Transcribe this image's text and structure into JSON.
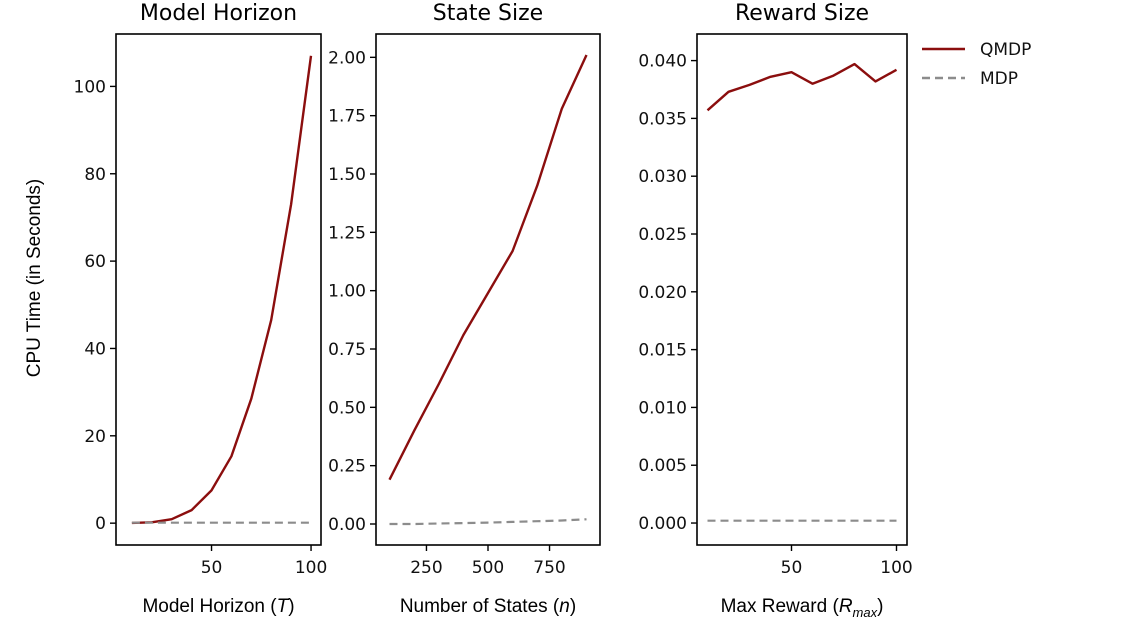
{
  "colors": {
    "qmdp": "#8b0e0e",
    "mdp": "#8c8c8c"
  },
  "legend": {
    "qmdp_label": "QMDP",
    "mdp_label": "MDP"
  },
  "ylabel": "CPU Time (in Seconds)",
  "chart_data": [
    {
      "type": "line",
      "title": "Model Horizon",
      "xlabel": "Model Horizon (T)",
      "xlabel_parts": {
        "pre": "Model Horizon (",
        "var": "T",
        "sub": "",
        "post": ")"
      },
      "xlim": [
        2,
        105
      ],
      "ylim": [
        -5,
        112
      ],
      "xticks": [
        50,
        100
      ],
      "yticks": [
        0,
        20,
        40,
        60,
        80,
        100
      ],
      "ytick_labels": [
        "0",
        "20",
        "40",
        "60",
        "80",
        "100"
      ],
      "x": [
        10,
        20,
        30,
        40,
        50,
        60,
        70,
        80,
        90,
        100
      ],
      "series": [
        {
          "name": "QMDP",
          "values": [
            0.05,
            0.2,
            0.9,
            3.0,
            7.5,
            15.3,
            28.5,
            46.5,
            73.0,
            107.0
          ]
        },
        {
          "name": "MDP",
          "values": [
            0.1,
            0.1,
            0.1,
            0.1,
            0.1,
            0.1,
            0.1,
            0.1,
            0.1,
            0.1
          ]
        }
      ]
    },
    {
      "type": "line",
      "title": "State Size",
      "xlabel": "Number of States (n)",
      "xlabel_parts": {
        "pre": "Number of States (",
        "var": "n",
        "sub": "",
        "post": ")"
      },
      "xlim": [
        45,
        955
      ],
      "ylim": [
        -0.09,
        2.1
      ],
      "xticks": [
        250,
        500,
        750
      ],
      "yticks": [
        0,
        0.25,
        0.5,
        0.75,
        1.0,
        1.25,
        1.5,
        1.75,
        2.0
      ],
      "ytick_labels": [
        "0.00",
        "0.25",
        "0.50",
        "0.75",
        "1.00",
        "1.25",
        "1.50",
        "1.75",
        "2.00"
      ],
      "x": [
        100,
        200,
        300,
        400,
        500,
        600,
        700,
        800,
        900
      ],
      "series": [
        {
          "name": "QMDP",
          "values": [
            0.19,
            0.4,
            0.6,
            0.81,
            0.99,
            1.17,
            1.45,
            1.78,
            2.01
          ]
        },
        {
          "name": "MDP",
          "values": [
            0.0,
            0.0,
            0.002,
            0.004,
            0.006,
            0.009,
            0.012,
            0.015,
            0.02
          ]
        }
      ]
    },
    {
      "type": "line",
      "title": "Reward Size",
      "xlabel": "Max Reward (R_max)",
      "xlabel_parts": {
        "pre": "Max Reward (",
        "var": "R",
        "sub": "max",
        "post": ")"
      },
      "xlim": [
        5,
        105
      ],
      "ylim": [
        -0.0019,
        0.0423
      ],
      "xticks": [
        50,
        100
      ],
      "yticks": [
        0,
        0.005,
        0.01,
        0.015,
        0.02,
        0.025,
        0.03,
        0.035,
        0.04
      ],
      "ytick_labels": [
        "0.000",
        "0.005",
        "0.010",
        "0.015",
        "0.020",
        "0.025",
        "0.030",
        "0.035",
        "0.040"
      ],
      "x": [
        10,
        20,
        30,
        40,
        50,
        60,
        70,
        80,
        90,
        100
      ],
      "series": [
        {
          "name": "QMDP",
          "values": [
            0.0357,
            0.0373,
            0.0379,
            0.0386,
            0.039,
            0.038,
            0.0387,
            0.0397,
            0.0382,
            0.0392
          ]
        },
        {
          "name": "MDP",
          "values": [
            0.0002,
            0.0002,
            0.0002,
            0.0002,
            0.0002,
            0.0002,
            0.0002,
            0.0002,
            0.0002,
            0.0002
          ]
        }
      ]
    }
  ]
}
